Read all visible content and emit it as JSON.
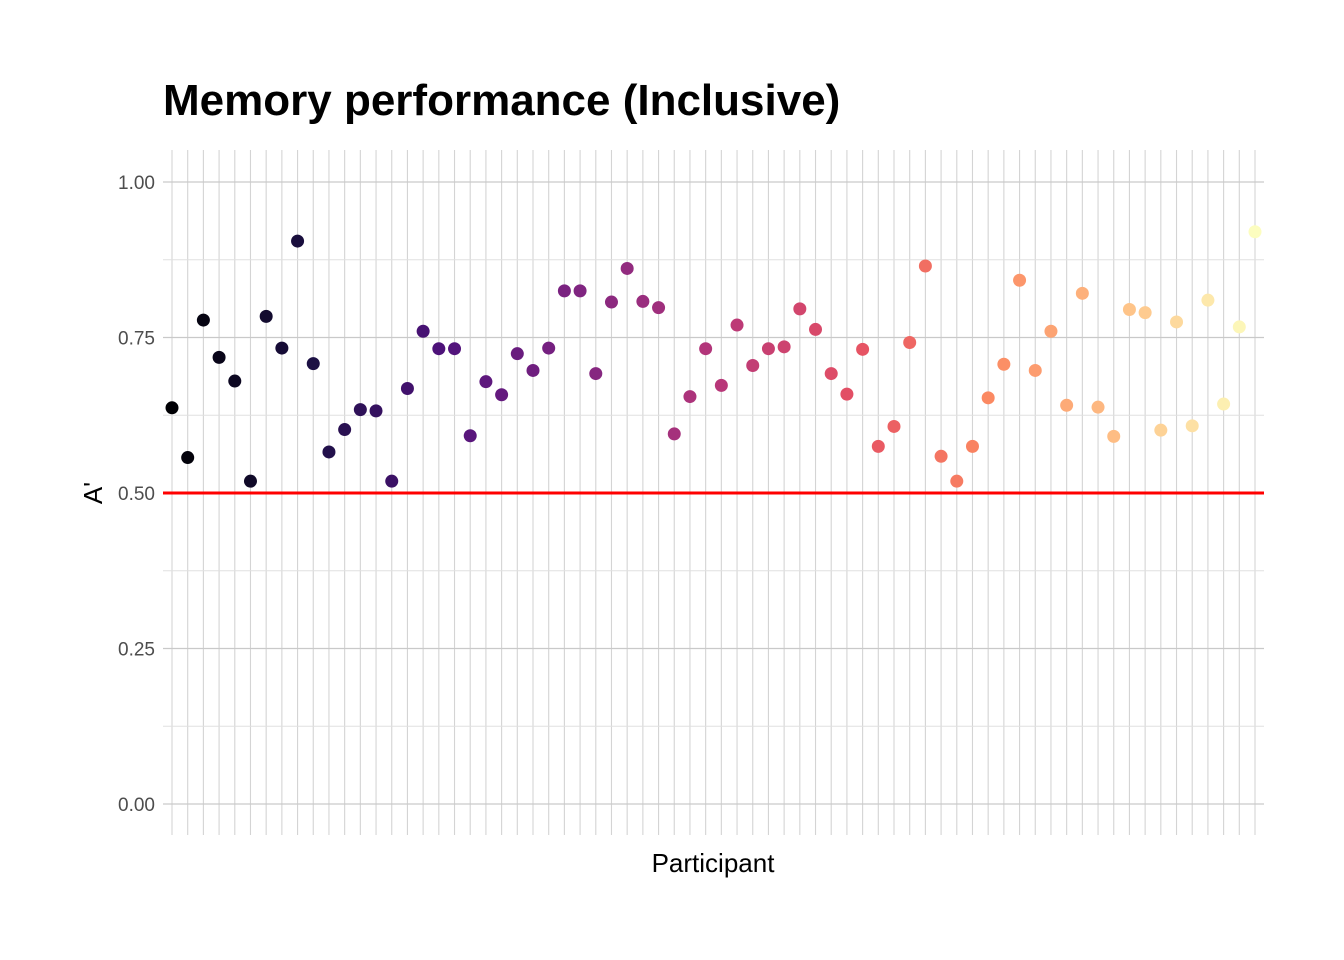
{
  "chart_data": {
    "type": "scatter",
    "title": "Memory performance (Inclusive)",
    "xlabel": "Participant",
    "ylabel": "A'",
    "ylim": [
      0,
      1
    ],
    "yticks": [
      "0.00",
      "0.25",
      "0.50",
      "0.75",
      "1.00"
    ],
    "ytick_values": [
      0,
      0.25,
      0.5,
      0.75,
      1.0
    ],
    "x_tick_labels_shown": false,
    "grid": true,
    "reference_line": {
      "y": 0.5,
      "color": "#ff0000"
    },
    "colormap": "magma",
    "series": [
      {
        "x": [
          1,
          2,
          3,
          4,
          5,
          6,
          7,
          8,
          9,
          10,
          11,
          12,
          13,
          14,
          15,
          16,
          17,
          18,
          19,
          20,
          21,
          22,
          23,
          24,
          25,
          26,
          27,
          28,
          29,
          30,
          31,
          32,
          33,
          34,
          35,
          36,
          37,
          38,
          39,
          40,
          41,
          42,
          43,
          44,
          45,
          46,
          47,
          48,
          49,
          50,
          51,
          52,
          53,
          54,
          55,
          56,
          57,
          58,
          59,
          60,
          61,
          62,
          63,
          64,
          65,
          66,
          67,
          68,
          69,
          70
        ],
        "values": [
          0.637,
          0.557,
          0.778,
          0.718,
          0.68,
          0.519,
          0.784,
          0.733,
          0.905,
          0.708,
          0.566,
          0.602,
          0.634,
          0.632,
          0.519,
          0.668,
          0.76,
          0.732,
          0.732,
          0.592,
          0.679,
          0.658,
          0.724,
          0.697,
          0.733,
          0.825,
          0.825,
          0.692,
          0.807,
          0.861,
          0.808,
          0.798,
          0.595,
          0.655,
          0.732,
          0.673,
          0.77,
          0.705,
          0.732,
          0.735,
          0.796,
          0.763,
          0.692,
          0.659,
          0.731,
          0.575,
          0.607,
          0.742,
          0.865,
          0.559,
          0.519,
          0.575,
          0.653,
          0.707,
          0.842,
          0.697,
          0.76,
          0.641,
          0.821,
          0.638,
          0.591,
          0.795,
          0.79,
          0.601,
          0.775,
          0.608,
          0.81,
          0.643,
          0.767,
          0.92
        ]
      }
    ]
  }
}
